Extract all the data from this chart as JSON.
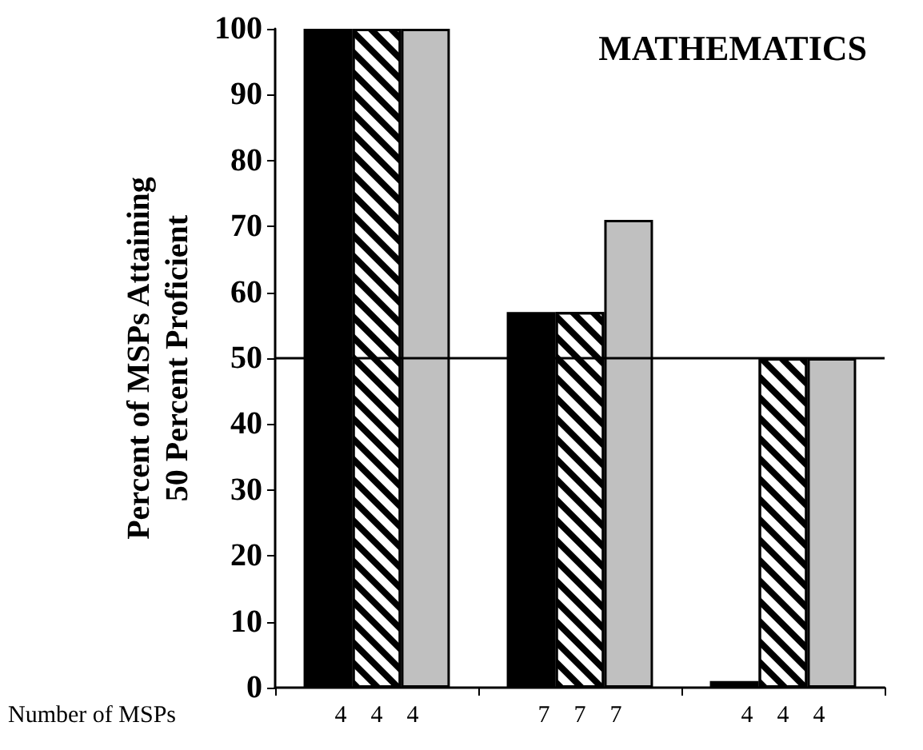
{
  "chart_data": {
    "type": "bar",
    "title": "MATHEMATICS",
    "ylabel": "Percent of MSPs Attaining\n50 Percent Proficient",
    "categories": [
      null,
      null,
      null
    ],
    "series": [
      {
        "color": "#000000",
        "values": [
          100,
          57,
          1
        ]
      },
      {
        "color": "#ffffff",
        "values": [
          100,
          57,
          50
        ]
      },
      {
        "color": "#c0c0c0",
        "values": [
          100,
          71,
          50
        ]
      }
    ],
    "ylim": [
      0,
      100
    ],
    "yticks": [
      0,
      10,
      20,
      30,
      40,
      50,
      60,
      70,
      80,
      90,
      100
    ],
    "grid": false,
    "ref_lines": [
      {
        "axis": "y",
        "value": 50,
        "color": "#000000"
      }
    ],
    "annotations": [
      "Number of MSPs",
      "4 4 4",
      "7 7 7",
      "4 4 4"
    ]
  }
}
